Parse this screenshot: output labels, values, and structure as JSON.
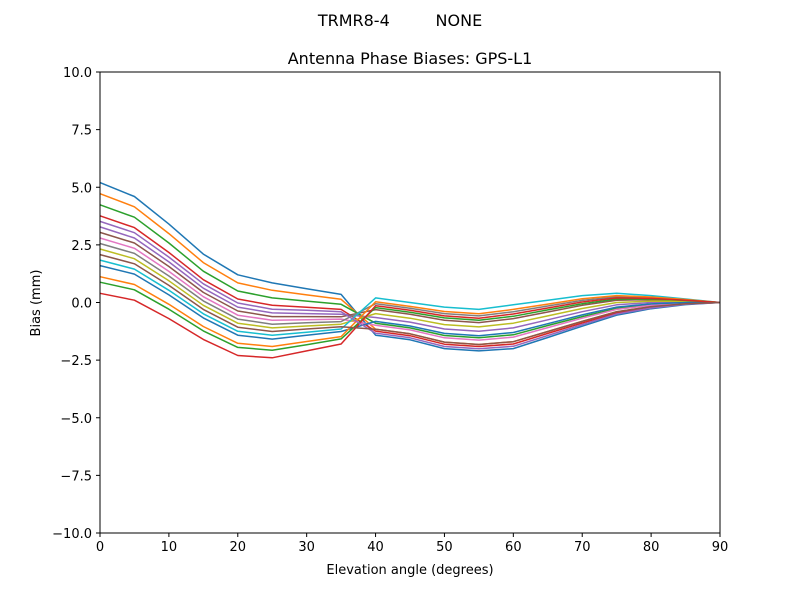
{
  "chart_data": {
    "type": "line",
    "suptitle": "TRMR8-4         NONE",
    "title": "Antenna Phase Biases: GPS-L1",
    "xlabel": "Elevation angle (degrees)",
    "ylabel": "Bias (mm)",
    "xlim": [
      0,
      90
    ],
    "ylim": [
      -10,
      10
    ],
    "xticks": [
      0,
      10,
      20,
      30,
      40,
      50,
      60,
      70,
      80,
      90
    ],
    "xtick_labels": [
      "0",
      "10",
      "20",
      "30",
      "40",
      "50",
      "60",
      "70",
      "80",
      "90"
    ],
    "yticks": [
      -10,
      -7.5,
      -5,
      -2.5,
      0,
      2.5,
      5,
      7.5,
      10
    ],
    "ytick_labels": [
      "−10.0",
      "−7.5",
      "−5.0",
      "−2.5",
      "0.0",
      "2.5",
      "5.0",
      "7.5",
      "10.0"
    ],
    "grid": false,
    "colors": [
      "#1f77b4",
      "#ff7f0e",
      "#2ca02c",
      "#d62728",
      "#9467bd",
      "#8c564b",
      "#e377c2",
      "#7f7f7f",
      "#bcbd22",
      "#17becf"
    ],
    "x": [
      0,
      5,
      10,
      15,
      20,
      25,
      30,
      35,
      40,
      45,
      50,
      55,
      60,
      65,
      70,
      75,
      80,
      85,
      90
    ],
    "series": [
      {
        "values": [
          5.2,
          4.6,
          3.4,
          2.1,
          1.2,
          0.85,
          0.6,
          0.35,
          -1.42,
          -1.62,
          -2.0,
          -2.1,
          -2.0,
          -1.52,
          -1.03,
          -0.55,
          -0.27,
          -0.09,
          0
        ]
      },
      {
        "values": [
          4.72,
          4.15,
          2.99,
          1.73,
          0.85,
          0.53,
          0.33,
          0.14,
          -1.16,
          -1.36,
          -1.72,
          -1.82,
          -1.7,
          -1.26,
          -0.82,
          -0.4,
          -0.18,
          -0.05,
          0
        ]
      },
      {
        "values": [
          4.24,
          3.7,
          2.58,
          1.36,
          0.5,
          0.2,
          0.06,
          -0.08,
          -0.9,
          -1.1,
          -1.43,
          -1.53,
          -1.4,
          -1.0,
          -0.61,
          -0.25,
          -0.09,
          -0.01,
          0
        ]
      },
      {
        "values": [
          3.76,
          3.25,
          2.17,
          0.99,
          0.15,
          -0.12,
          -0.21,
          -0.3,
          -1.24,
          -1.44,
          -1.81,
          -1.91,
          -1.8,
          -1.34,
          -0.89,
          -0.45,
          -0.21,
          -0.06,
          0
        ]
      },
      {
        "values": [
          3.28,
          2.8,
          1.76,
          0.62,
          -0.2,
          -0.45,
          -0.48,
          -0.51,
          -0.65,
          -0.85,
          -1.15,
          -1.25,
          -1.1,
          -0.75,
          -0.4,
          -0.1,
          0,
          0.03,
          0
        ]
      },
      {
        "values": [
          3.04,
          2.58,
          1.56,
          0.44,
          -0.37,
          -0.61,
          -0.61,
          -0.62,
          -0.31,
          -0.51,
          -0.77,
          -0.87,
          -0.7,
          -0.41,
          -0.12,
          0.1,
          0.12,
          0.08,
          0
        ]
      },
      {
        "values": [
          2.8,
          2.35,
          1.35,
          0.25,
          -0.55,
          -0.77,
          -0.75,
          -0.72,
          -0.99,
          -1.19,
          -1.53,
          -1.63,
          -1.5,
          -1.09,
          -0.68,
          -0.3,
          -0.12,
          -0.03,
          0
        ]
      },
      {
        "values": [
          2.56,
          2.13,
          1.15,
          0.07,
          -0.72,
          -0.94,
          -0.88,
          -0.83,
          -0.05,
          -0.25,
          -0.48,
          -0.58,
          -0.4,
          -0.15,
          0.09,
          0.25,
          0.21,
          0.11,
          0
        ]
      },
      {
        "values": [
          2.32,
          1.9,
          0.94,
          -0.12,
          -0.9,
          -1.1,
          -1.02,
          -0.94,
          -0.48,
          -0.68,
          -0.96,
          -1.06,
          -0.9,
          -0.58,
          -0.26,
          0,
          0.06,
          0.05,
          0
        ]
      },
      {
        "values": [
          1.84,
          1.45,
          0.53,
          -0.49,
          -1.25,
          -1.42,
          -1.29,
          -1.15,
          0.2,
          0,
          -0.2,
          -0.3,
          -0.1,
          0.1,
          0.3,
          0.4,
          0.3,
          0.15,
          0
        ]
      },
      {
        "values": [
          1.6,
          1.23,
          0.33,
          -0.67,
          -1.42,
          -1.59,
          -1.42,
          -1.26,
          -0.82,
          -1.02,
          -1.34,
          -1.44,
          -1.3,
          -0.92,
          -0.54,
          -0.2,
          -0.06,
          0,
          0
        ]
      },
      {
        "values": [
          1.12,
          0.78,
          -0.08,
          -1.04,
          -1.77,
          -1.91,
          -1.69,
          -1.48,
          0.03,
          -0.17,
          -0.39,
          -0.49,
          -0.3,
          -0.07,
          0.16,
          0.3,
          0.24,
          0.13,
          0
        ]
      },
      {
        "values": [
          0.88,
          0.55,
          -0.29,
          -1.23,
          -1.95,
          -2.07,
          -1.83,
          -1.58,
          -0.22,
          -0.42,
          -0.67,
          -0.77,
          -0.6,
          -0.32,
          -0.05,
          0.15,
          0.15,
          0.09,
          0
        ]
      },
      {
        "values": [
          0.4,
          0.1,
          -0.7,
          -1.6,
          -2.3,
          -2.4,
          -2.1,
          -1.8,
          -0.14,
          -0.34,
          -0.58,
          -0.68,
          -0.5,
          -0.24,
          0.02,
          0.2,
          0.18,
          0.1,
          0
        ]
      },
      {
        "values": [
          3.52,
          3.03,
          1.97,
          0.81,
          -0.02,
          -0.29,
          -0.34,
          -0.4,
          -1.33,
          -1.53,
          -1.91,
          -2.01,
          -1.9,
          -1.43,
          -0.96,
          -0.5,
          -0.24,
          -0.08,
          0
        ]
      },
      {
        "values": [
          2.08,
          1.68,
          0.74,
          -0.3,
          -1.07,
          -1.26,
          -1.15,
          -1.05,
          -1.16,
          -1.36,
          -1.72,
          -1.82,
          -1.7,
          -1.26,
          -0.82,
          -0.4,
          -0.18,
          -0.05,
          0
        ]
      }
    ]
  }
}
